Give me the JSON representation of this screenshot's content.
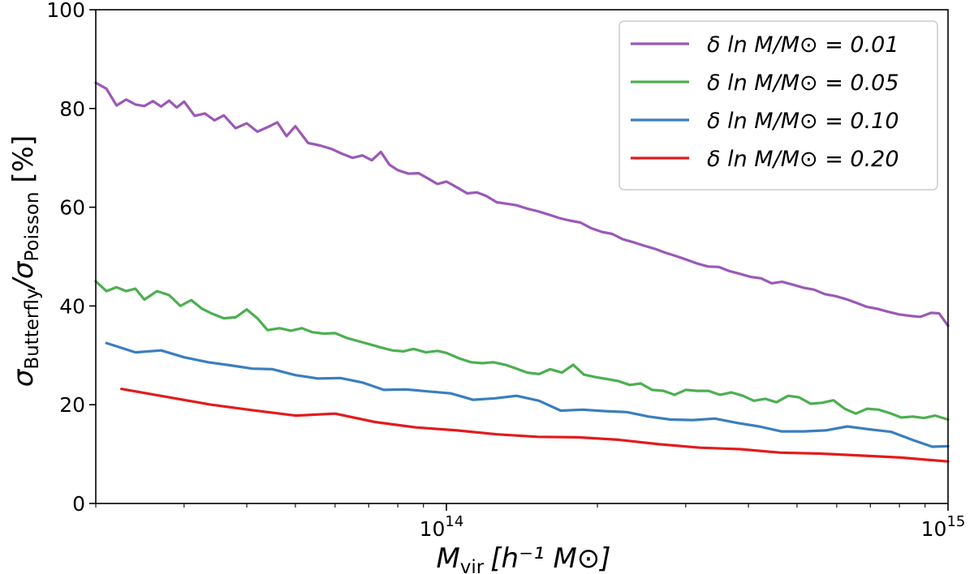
{
  "chart_data": {
    "type": "line",
    "title": "",
    "xlabel": {
      "main": "M",
      "sub": "vir",
      "units": "[h⁻¹ M⊙]"
    },
    "ylabel": {
      "main": "σ",
      "sub1": "Butterfly",
      "sep": "/σ",
      "sub2": "Poisson",
      "units": " [%]"
    },
    "xscale": "log",
    "xlim": [
      20000000000000,
      1000000000000000
    ],
    "ylim": [
      0,
      100
    ],
    "yticks": [
      0,
      20,
      40,
      60,
      80,
      100
    ],
    "xticks_major": [
      {
        "value": 100000000000000,
        "base": "10",
        "exp": "14"
      },
      {
        "value": 1000000000000000,
        "base": "10",
        "exp": "15"
      }
    ],
    "grid": false,
    "legend_position": "top-right",
    "series": [
      {
        "name": "δ ln M/M⊙ = 0.01",
        "color": "#9b59b6",
        "x": [
          20000000000000.0,
          21000000000000.0,
          22000000000000.0,
          23000000000000.0,
          24000000000000.0,
          25000000000000.0,
          26000000000000.0,
          27000000000000.0,
          28000000000000.0,
          29000000000000.0,
          30000000000000.0,
          31500000000000.0,
          33000000000000.0,
          34500000000000.0,
          36000000000000.0,
          38000000000000.0,
          40000000000000.0,
          42000000000000.0,
          44000000000000.0,
          46000000000000.0,
          48000000000000.0,
          50000000000000.0,
          53000000000000.0,
          56000000000000.0,
          59000000000000.0,
          62000000000000.0,
          65000000000000.0,
          68000000000000.0,
          71000000000000.0,
          74000000000000.0,
          77000000000000.0,
          80000000000000.0,
          84000000000000.0,
          88000000000000.0,
          92000000000000.0,
          96000000000000.0,
          100000000000000.0,
          105000000000000.0,
          110000000000000.0,
          115000000000000.0,
          120000000000000.0,
          126000000000000.0,
          132000000000000.0,
          138000000000000.0,
          145000000000000.0,
          152000000000000.0,
          160000000000000.0,
          168000000000000.0,
          176000000000000.0,
          185000000000000.0,
          194000000000000.0,
          204000000000000.0,
          214000000000000.0,
          225000000000000.0,
          236000000000000.0,
          248000000000000.0,
          260000000000000.0,
          273000000000000.0,
          287000000000000.0,
          301000000000000.0,
          316000000000000.0,
          332000000000000.0,
          349000000000000.0,
          366000000000000.0,
          385000000000000.0,
          404000000000000.0,
          424000000000000.0,
          445000000000000.0,
          467000000000000.0,
          491000000000000.0,
          515000000000000.0,
          541000000000000.0,
          568000000000000.0,
          596000000000000.0,
          626000000000000.0,
          658000000000000.0,
          690000000000000.0,
          725000000000000.0,
          761000000000000.0,
          799000000000000.0,
          839000000000000.0,
          881000000000000.0,
          925000000000000.0,
          960000000000000.0,
          1000000000000000.0
        ],
        "values": [
          85.2,
          84.0,
          80.6,
          81.8,
          80.8,
          80.5,
          81.5,
          80.4,
          81.6,
          80.2,
          81.4,
          78.5,
          79.0,
          77.6,
          78.6,
          76.0,
          77.0,
          75.3,
          76.2,
          77.2,
          74.4,
          76.4,
          73.0,
          72.5,
          71.8,
          70.8,
          70.0,
          70.5,
          69.5,
          71.2,
          68.6,
          67.5,
          66.8,
          66.9,
          65.8,
          64.7,
          65.2,
          64.0,
          62.8,
          63.0,
          62.3,
          61.0,
          60.7,
          60.4,
          59.7,
          59.2,
          58.5,
          57.8,
          57.3,
          56.9,
          55.8,
          55.0,
          54.6,
          53.5,
          52.9,
          52.2,
          51.6,
          50.8,
          50.1,
          49.4,
          48.6,
          48.0,
          47.9,
          47.1,
          46.5,
          45.9,
          45.6,
          44.6,
          44.9,
          44.3,
          43.7,
          43.3,
          42.4,
          42.0,
          41.4,
          40.6,
          39.8,
          39.4,
          38.8,
          38.3,
          38.0,
          37.8,
          38.6,
          38.5,
          36.0
        ]
      },
      {
        "name": "δ ln M/M⊙ = 0.05",
        "color": "#4caf50",
        "x": [
          20000000000000.0,
          21000000000000.0,
          22000000000000.0,
          23000000000000.0,
          24000000000000.0,
          25000000000000.0,
          26500000000000.0,
          28000000000000.0,
          29500000000000.0,
          31000000000000.0,
          32500000000000.0,
          34000000000000.0,
          36000000000000.0,
          38000000000000.0,
          40000000000000.0,
          42000000000000.0,
          44000000000000.0,
          46500000000000.0,
          49000000000000.0,
          51500000000000.0,
          54000000000000.0,
          57000000000000.0,
          60000000000000.0,
          63000000000000.0,
          66000000000000.0,
          70000000000000.0,
          74000000000000.0,
          78000000000000.0,
          82000000000000.0,
          86000000000000.0,
          91000000000000.0,
          96000000000000.0,
          100000000000000.0,
          106000000000000.0,
          112000000000000.0,
          118000000000000.0,
          124000000000000.0,
          131000000000000.0,
          138000000000000.0,
          145000000000000.0,
          153000000000000.0,
          161000000000000.0,
          170000000000000.0,
          179000000000000.0,
          188000000000000.0,
          198000000000000.0,
          209000000000000.0,
          220000000000000.0,
          232000000000000.0,
          244000000000000.0,
          257000000000000.0,
          271000000000000.0,
          285000000000000.0,
          300000000000000.0,
          316000000000000.0,
          333000000000000.0,
          351000000000000.0,
          370000000000000.0,
          390000000000000.0,
          410000000000000.0,
          432000000000000.0,
          455000000000000.0,
          480000000000000.0,
          505000000000000.0,
          532000000000000.0,
          561000000000000.0,
          591000000000000.0,
          622000000000000.0,
          655000000000000.0,
          690000000000000.0,
          727000000000000.0,
          766000000000000.0,
          807000000000000.0,
          850000000000000.0,
          895000000000000.0,
          943000000000000.0,
          1000000000000000.0
        ],
        "values": [
          45.0,
          43.0,
          43.8,
          43.0,
          43.5,
          41.3,
          43.0,
          42.2,
          40.0,
          41.2,
          39.5,
          38.5,
          37.5,
          37.7,
          39.3,
          37.5,
          35.1,
          35.5,
          35.0,
          35.5,
          34.7,
          34.4,
          34.5,
          33.6,
          33.0,
          32.3,
          31.6,
          31.0,
          30.8,
          31.3,
          30.6,
          30.9,
          30.5,
          29.4,
          28.6,
          28.4,
          28.6,
          28.1,
          27.3,
          26.5,
          26.2,
          27.2,
          26.5,
          28.1,
          26.1,
          25.6,
          25.2,
          24.8,
          24.0,
          24.3,
          23.0,
          22.8,
          22.0,
          23.0,
          22.8,
          22.8,
          22.0,
          22.5,
          21.8,
          20.8,
          21.2,
          20.5,
          21.8,
          21.5,
          20.2,
          20.4,
          20.9,
          19.2,
          18.2,
          19.2,
          19.0,
          18.3,
          17.4,
          17.6,
          17.3,
          17.8,
          17.0
        ]
      },
      {
        "name": "δ ln M/M⊙ = 0.10",
        "color": "#3a7ebf",
        "x": [
          21000000000000.0,
          24000000000000.0,
          27000000000000.0,
          30000000000000.0,
          33500000000000.0,
          37000000000000.0,
          41000000000000.0,
          45000000000000.0,
          50000000000000.0,
          55500000000000.0,
          61500000000000.0,
          68000000000000.0,
          75000000000000.0,
          83000000000000.0,
          92000000000000.0,
          102000000000000.0,
          113000000000000.0,
          125000000000000.0,
          138000000000000.0,
          153000000000000.0,
          169000000000000.0,
          187000000000000.0,
          207000000000000.0,
          229000000000000.0,
          253000000000000.0,
          280000000000000.0,
          310000000000000.0,
          343000000000000.0,
          380000000000000.0,
          420000000000000.0,
          465000000000000.0,
          515000000000000.0,
          570000000000000.0,
          630000000000000.0,
          697000000000000.0,
          771000000000000.0,
          853000000000000.0,
          930000000000000.0,
          1000000000000000.0
        ],
        "values": [
          32.5,
          30.6,
          31.0,
          29.6,
          28.6,
          28.0,
          27.3,
          27.2,
          26.0,
          25.3,
          25.4,
          24.5,
          23.0,
          23.1,
          22.7,
          22.3,
          21.0,
          21.3,
          21.8,
          20.8,
          18.8,
          19.0,
          18.7,
          18.5,
          17.6,
          17.0,
          16.9,
          17.2,
          16.3,
          15.6,
          14.6,
          14.6,
          14.8,
          15.6,
          15.0,
          14.5,
          12.8,
          11.5,
          11.6
        ]
      },
      {
        "name": "δ ln M/M⊙ = 0.20",
        "color": "#e31a1c",
        "x": [
          22500000000000.0,
          28000000000000.0,
          34000000000000.0,
          41000000000000.0,
          50000000000000.0,
          60000000000000.0,
          72000000000000.0,
          87000000000000.0,
          105000000000000.0,
          126000000000000.0,
          152000000000000.0,
          183000000000000.0,
          220000000000000.0,
          265000000000000.0,
          320000000000000.0,
          385000000000000.0,
          463000000000000.0,
          557000000000000.0,
          670000000000000.0,
          806000000000000.0,
          1000000000000000.0
        ],
        "values": [
          23.2,
          21.5,
          20.0,
          18.9,
          17.8,
          18.2,
          16.5,
          15.4,
          14.8,
          14.0,
          13.5,
          13.4,
          12.9,
          12.0,
          11.3,
          11.0,
          10.3,
          10.1,
          9.7,
          9.3,
          8.5
        ]
      }
    ]
  }
}
